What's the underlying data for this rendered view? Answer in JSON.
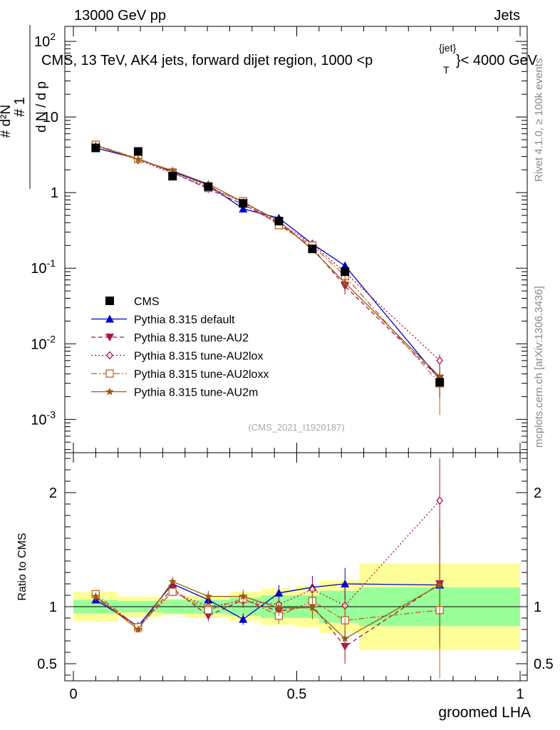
{
  "header": {
    "left": "13000 GeV pp",
    "right": "Jets"
  },
  "chart_data": {
    "type": "line",
    "title": "CMS, 13 TeV, AK4 jets, forward dijet region, 1000 <p",
    "title_sup": "{jet}",
    "title_sub": "T",
    "title_end": "}< 4000 GeV",
    "xlabel": "groomed LHA",
    "ylabel_main": "1 / (dN / dp_T) · d²N / dp_T dλ",
    "ylabel_ratio": "Ratio to CMS",
    "xlim": [
      0,
      1
    ],
    "ylim_main": [
      0.0003,
      200
    ],
    "ylim_ratio": [
      0.35,
      2.35
    ],
    "x_ticks": [
      "0",
      "0.5",
      "1"
    ],
    "y_ticks_main": [
      {
        "mant": "10",
        "exp": "-3",
        "value": 0.001
      },
      {
        "mant": "10",
        "exp": "-2",
        "value": 0.01
      },
      {
        "mant": "10",
        "exp": "-1",
        "value": 0.1
      },
      {
        "mant": "1",
        "exp": "",
        "value": 1
      },
      {
        "mant": "10",
        "exp": "",
        "value": 10
      },
      {
        "mant": "10",
        "exp": "2",
        "value": 100
      }
    ],
    "y_ticks_ratio": [
      "0.5",
      "1",
      "2"
    ],
    "bins": [
      [
        0,
        0.1
      ],
      [
        0.1,
        0.2
      ],
      [
        0.2,
        0.25
      ],
      [
        0.25,
        0.35
      ],
      [
        0.35,
        0.42
      ],
      [
        0.42,
        0.5
      ],
      [
        0.5,
        0.55
      ],
      [
        0.55,
        0.64
      ],
      [
        0.64,
        1
      ]
    ],
    "data": {
      "name": "CMS",
      "x": [
        0.05,
        0.145,
        0.222,
        0.302,
        0.38,
        0.46,
        0.535,
        0.608,
        0.82
      ],
      "values": [
        3.9,
        3.5,
        1.65,
        1.2,
        0.72,
        0.42,
        0.18,
        0.09,
        0.0031
      ],
      "band_stat": [
        0.06,
        0.05,
        0.06,
        0.06,
        0.08,
        0.1,
        0.1,
        0.14,
        0.17
      ],
      "band_total": [
        0.13,
        0.09,
        0.07,
        0.1,
        0.13,
        0.16,
        0.18,
        0.23,
        0.38
      ]
    },
    "series": [
      {
        "name": "Pythia 8.315 default",
        "color": "#0000cc",
        "dash": "",
        "marker": "triangle-up",
        "values": [
          3.9,
          2.8,
          1.9,
          1.26,
          0.61,
          0.46,
          0.21,
          0.108,
          0.0034
        ],
        "ratio": [
          1.06,
          0.83,
          1.2,
          1.06,
          0.89,
          1.12,
          1.17,
          1.2,
          1.19
        ],
        "ratio_err": [
          0.03,
          0.03,
          0.04,
          0.05,
          0.05,
          0.07,
          0.1,
          0.14,
          0.5
        ]
      },
      {
        "name": "Pythia 8.315 tune-AU2",
        "color": "#aa1155",
        "dash": "6,4",
        "marker": "triangle-down",
        "values": [
          4.2,
          2.8,
          1.85,
          1.12,
          0.7,
          0.39,
          0.185,
          0.058,
          0.0035
        ],
        "ratio": [
          1.08,
          0.82,
          1.16,
          0.92,
          1.06,
          0.96,
          1.01,
          0.65,
          1.2
        ],
        "ratio_err": [
          0.03,
          0.03,
          0.04,
          0.05,
          0.06,
          0.07,
          0.1,
          0.15,
          0.55
        ]
      },
      {
        "name": "Pythia 8.315 tune-AU2lox",
        "color": "#b01040",
        "dash": "2,3",
        "marker": "diamond-open",
        "values": [
          4.2,
          2.7,
          1.8,
          1.2,
          0.74,
          0.4,
          0.21,
          0.088,
          0.006
        ],
        "ratio": [
          1.09,
          0.82,
          1.13,
          1.0,
          1.05,
          1.02,
          1.15,
          1.01,
          1.93
        ],
        "ratio_err": [
          0.03,
          0.03,
          0.04,
          0.05,
          0.06,
          0.07,
          0.1,
          0.16,
          0.4
        ]
      },
      {
        "name": "Pythia 8.315 tune-AU2loxx",
        "color": "#c06020",
        "dash": "8,3,2,3",
        "marker": "square-open",
        "values": [
          4.3,
          2.8,
          1.85,
          1.15,
          0.77,
          0.37,
          0.2,
          0.079,
          0.003
        ],
        "ratio": [
          1.11,
          0.82,
          1.13,
          0.97,
          1.07,
          0.92,
          1.05,
          0.88,
          0.97
        ],
        "ratio_err": [
          0.03,
          0.03,
          0.04,
          0.05,
          0.06,
          0.07,
          0.1,
          0.16,
          0.6
        ]
      },
      {
        "name": "Pythia 8.315 tune-AU2m",
        "color": "#9a5a10",
        "dash": "",
        "marker": "star",
        "values": [
          4.2,
          2.75,
          1.95,
          1.3,
          0.75,
          0.42,
          0.176,
          0.064,
          0.0037
        ],
        "ratio": [
          1.09,
          0.8,
          1.22,
          1.09,
          1.09,
          0.99,
          0.99,
          0.72,
          1.19
        ],
        "ratio_err": [
          0.03,
          0.03,
          0.04,
          0.05,
          0.06,
          0.07,
          0.1,
          0.18,
          0.55
        ]
      }
    ],
    "legend_position": "left-lower",
    "watermark": "(CMS_2021_I1920187)"
  },
  "side": {
    "rivet": "Rivet 4.1.0, ≥ 100k events",
    "mcplots": "mcplots.cern.ch [arXiv:1306.3436]"
  }
}
